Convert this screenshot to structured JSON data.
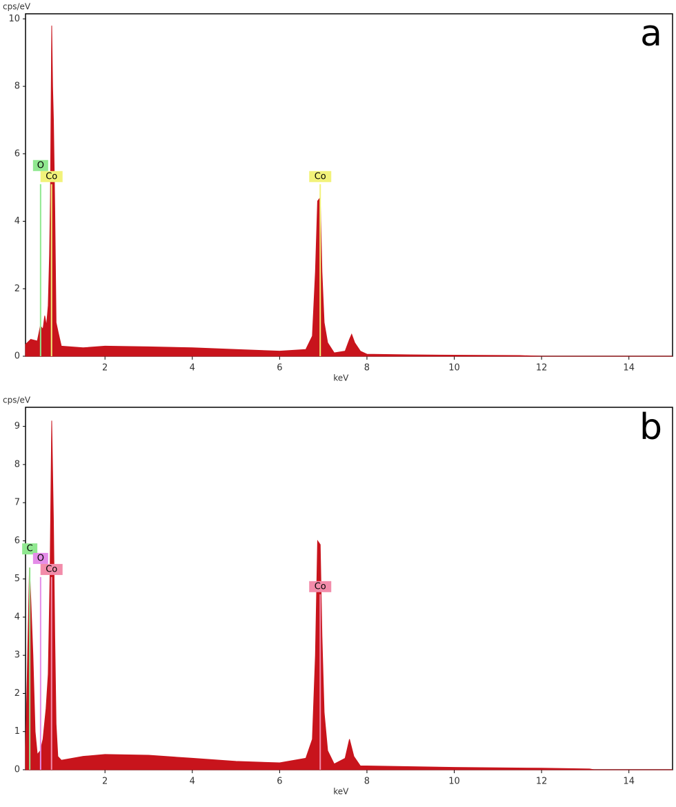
{
  "chart_data": [
    {
      "type": "area",
      "panel_label": "a",
      "ylabel": "cps/eV",
      "xlabel": "keV",
      "color": "#c8141c",
      "xlim": [
        0.18,
        15.0
      ],
      "ylim": [
        0,
        10.15
      ],
      "xticks": [
        2,
        4,
        6,
        8,
        10,
        12,
        14
      ],
      "yticks": [
        0,
        2,
        4,
        6,
        8,
        10
      ],
      "x": [
        0.18,
        0.3,
        0.45,
        0.52,
        0.58,
        0.62,
        0.66,
        0.7,
        0.73,
        0.75,
        0.78,
        0.8,
        0.82,
        0.85,
        0.88,
        0.93,
        1.0,
        1.5,
        2.0,
        3.0,
        4.0,
        5.0,
        6.0,
        6.6,
        6.75,
        6.82,
        6.87,
        6.93,
        6.97,
        7.02,
        7.1,
        7.25,
        7.5,
        7.6,
        7.65,
        7.72,
        7.85,
        8.0,
        9.0,
        10.0,
        11.5,
        12.0,
        15.0
      ],
      "values": [
        0.35,
        0.5,
        0.45,
        0.9,
        0.8,
        1.2,
        0.9,
        1.5,
        3.0,
        4.7,
        9.8,
        8.0,
        7.0,
        4.4,
        1.0,
        0.7,
        0.3,
        0.25,
        0.3,
        0.28,
        0.25,
        0.2,
        0.15,
        0.2,
        0.6,
        2.5,
        4.6,
        4.7,
        2.5,
        1.0,
        0.4,
        0.1,
        0.15,
        0.5,
        0.65,
        0.4,
        0.15,
        0.06,
        0.04,
        0.03,
        0.02,
        0.0,
        0.0
      ],
      "annotations": [
        {
          "text": "O",
          "x": 0.525,
          "y": 5.1,
          "color": "#90e890"
        },
        {
          "text": "Co",
          "x": 0.776,
          "y": 5.1,
          "color": "#f2f27a"
        },
        {
          "text": "Co",
          "x": 6.93,
          "y": 5.1,
          "color": "#f2f27a"
        }
      ]
    },
    {
      "type": "area",
      "panel_label": "b",
      "ylabel": "cps/eV",
      "xlabel": "keV",
      "color": "#c8141c",
      "xlim": [
        0.18,
        15.0
      ],
      "ylim": [
        0,
        9.5
      ],
      "xticks": [
        2,
        4,
        6,
        8,
        10,
        12,
        14
      ],
      "yticks": [
        0,
        1,
        2,
        3,
        4,
        5,
        6,
        7,
        8,
        9
      ],
      "x": [
        0.18,
        0.22,
        0.27,
        0.3,
        0.35,
        0.4,
        0.45,
        0.52,
        0.58,
        0.65,
        0.7,
        0.74,
        0.78,
        0.82,
        0.85,
        0.88,
        0.92,
        1.0,
        1.5,
        2.0,
        3.0,
        4.0,
        5.0,
        6.0,
        6.6,
        6.75,
        6.82,
        6.87,
        6.93,
        6.97,
        7.02,
        7.1,
        7.25,
        7.5,
        7.6,
        7.7,
        7.85,
        8.0,
        10.0,
        12.0,
        13.1,
        13.2,
        15.0
      ],
      "values": [
        0.6,
        2.5,
        5.3,
        4.5,
        3.0,
        1.0,
        0.4,
        0.5,
        0.8,
        1.6,
        2.5,
        5.0,
        9.15,
        6.5,
        3.5,
        1.2,
        0.35,
        0.25,
        0.35,
        0.4,
        0.38,
        0.3,
        0.22,
        0.18,
        0.3,
        0.8,
        3.0,
        6.0,
        5.9,
        3.5,
        1.5,
        0.5,
        0.15,
        0.3,
        0.8,
        0.35,
        0.1,
        0.1,
        0.06,
        0.04,
        0.02,
        0.0,
        0.0
      ],
      "annotations": [
        {
          "text": "C",
          "x": 0.277,
          "y": 5.3,
          "color": "#90e890"
        },
        {
          "text": "O",
          "x": 0.525,
          "y": 5.05,
          "color": "#e48ce8"
        },
        {
          "text": "Co",
          "x": 0.776,
          "y": 5.05,
          "color": "#f28caa"
        },
        {
          "text": "Co",
          "x": 6.93,
          "y": 4.6,
          "color": "#f28caa"
        }
      ]
    }
  ]
}
